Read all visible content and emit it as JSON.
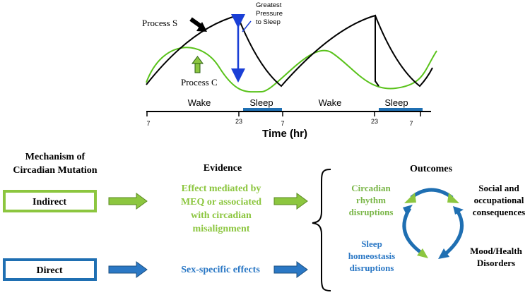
{
  "colors": {
    "green": "#8cc63f",
    "green_text": "#7ab648",
    "blue": "#1f6fb2",
    "blue_text": "#2b78c5",
    "process_c_line": "#59c21a",
    "pressure_arrow": "#1a3fd6",
    "black": "#000000"
  },
  "model": {
    "process_s_label": "Process S",
    "process_c_label": "Process C",
    "pressure_label_line1": "Greatest",
    "pressure_label_line2": "Pressure",
    "pressure_label_line3": "to Sleep",
    "wake_label_1": "Wake",
    "sleep_label_1": "Sleep",
    "wake_label_2": "Wake",
    "sleep_label_2": "Sleep",
    "axis_title": "Time (hr)",
    "ticks": [
      "7",
      "23",
      "7",
      "23",
      "7"
    ]
  },
  "mechanism": {
    "heading_line1": "Mechanism of",
    "heading_line2": "Circadian Mutation",
    "indirect_label": "Indirect",
    "direct_label": "Direct"
  },
  "evidence": {
    "heading": "Evidence",
    "indirect_line1": "Effect mediated by",
    "indirect_line2": "MEQ or associated",
    "indirect_line3": "with circadian",
    "indirect_line4": "misalignment",
    "direct_text": "Sex-specific effects"
  },
  "outcomes": {
    "heading": "Outcomes",
    "circadian_line1": "Circadian",
    "circadian_line2": "rhythm",
    "circadian_line3": "disruptions",
    "sleep_line1": "Sleep",
    "sleep_line2": "homeostasis",
    "sleep_line3": "disruptions",
    "social_line1": "Social and",
    "social_line2": "occupational",
    "social_line3": "consequences",
    "mood_line1": "Mood/Health",
    "mood_line2": "Disorders"
  }
}
